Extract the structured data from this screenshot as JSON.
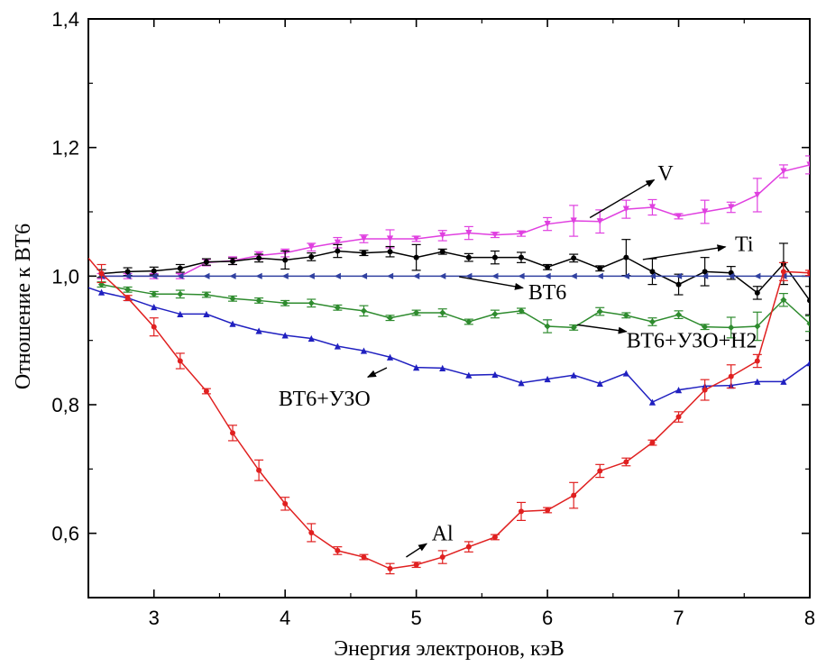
{
  "chart_data": {
    "type": "line",
    "xlabel": "Энергия электронов, кэВ",
    "ylabel": "Отношение к ВТ6",
    "xlim": [
      2.5,
      8
    ],
    "ylim": [
      0.5,
      1.4
    ],
    "x_ticks": [
      3,
      4,
      5,
      6,
      7,
      8
    ],
    "x_tick_labels": [
      "3",
      "4",
      "5",
      "6",
      "7",
      "8"
    ],
    "y_ticks": [
      0.6,
      0.8,
      1.0,
      1.2,
      1.4
    ],
    "y_tick_labels": [
      "0,6",
      "0,8",
      "1,0",
      "1,2",
      "1,4"
    ],
    "grid": false,
    "x": [
      2.6,
      2.8,
      3.0,
      3.2,
      3.4,
      3.6,
      3.8,
      4.0,
      4.2,
      4.4,
      4.6,
      4.8,
      5.0,
      5.2,
      5.4,
      5.6,
      5.8,
      6.0,
      6.2,
      6.4,
      6.6,
      6.8,
      7.0,
      7.2,
      7.4,
      7.6,
      7.8,
      8.0
    ],
    "series": [
      {
        "name": "V",
        "color": "#e040e0",
        "marker": "triangle-down",
        "values": [
          1.0,
          1.0,
          1.0,
          1.0,
          1.021,
          1.024,
          1.032,
          1.036,
          1.045,
          1.052,
          1.058,
          1.058,
          1.058,
          1.063,
          1.067,
          1.064,
          1.066,
          1.081,
          1.086,
          1.085,
          1.104,
          1.107,
          1.093,
          1.1,
          1.107,
          1.126,
          1.163,
          1.173
        ],
        "errors": [
          0.004,
          0.004,
          0.004,
          0.004,
          0.005,
          0.006,
          0.006,
          0.006,
          0.006,
          0.008,
          0.006,
          0.014,
          0.004,
          0.008,
          0.01,
          0.004,
          0.004,
          0.01,
          0.024,
          0.018,
          0.014,
          0.012,
          0.004,
          0.018,
          0.008,
          0.026,
          0.01,
          0.014
        ]
      },
      {
        "name": "Ti",
        "color": "#000000",
        "marker": "circle",
        "values": [
          1.004,
          1.007,
          1.008,
          1.012,
          1.022,
          1.023,
          1.028,
          1.025,
          1.03,
          1.039,
          1.036,
          1.038,
          1.029,
          1.038,
          1.029,
          1.029,
          1.029,
          1.014,
          1.028,
          1.012,
          1.029,
          1.007,
          0.987,
          1.007,
          1.005,
          0.974,
          1.019,
          0.962
        ],
        "errors": [
          0.006,
          0.006,
          0.006,
          0.006,
          0.005,
          0.005,
          0.006,
          0.014,
          0.006,
          0.01,
          0.004,
          0.008,
          0.02,
          0.004,
          0.006,
          0.01,
          0.008,
          0.004,
          0.006,
          0.004,
          0.028,
          0.02,
          0.016,
          0.022,
          0.01,
          0.01,
          0.032,
          0.022
        ]
      },
      {
        "name": "ВТ6",
        "color": "#3040a0",
        "marker": "triangle-left",
        "values": [
          1.0,
          1.0,
          1.0,
          1.0,
          1.0,
          1.0,
          1.0,
          1.0,
          1.0,
          1.0,
          1.0,
          1.0,
          1.0,
          1.0,
          1.0,
          1.0,
          1.0,
          1.0,
          1.0,
          1.0,
          1.0,
          1.0,
          1.0,
          1.0,
          1.0,
          1.0,
          1.0,
          1.0
        ],
        "errors": [
          0,
          0,
          0,
          0,
          0,
          0,
          0,
          0,
          0,
          0,
          0,
          0,
          0,
          0,
          0,
          0,
          0,
          0,
          0,
          0,
          0,
          0,
          0,
          0,
          0,
          0,
          0,
          0
        ]
      },
      {
        "name": "ВТ6+УЗО+Н2",
        "color": "#2e8b2e",
        "marker": "diamond",
        "values": [
          0.987,
          0.979,
          0.972,
          0.972,
          0.971,
          0.965,
          0.962,
          0.958,
          0.958,
          0.951,
          0.946,
          0.935,
          0.943,
          0.943,
          0.929,
          0.941,
          0.946,
          0.922,
          0.92,
          0.945,
          0.939,
          0.929,
          0.94,
          0.921,
          0.92,
          0.922,
          0.963,
          0.926
        ],
        "errors": [
          0.004,
          0.004,
          0.004,
          0.006,
          0.004,
          0.004,
          0.004,
          0.004,
          0.006,
          0.004,
          0.008,
          0.004,
          0.004,
          0.006,
          0.004,
          0.006,
          0.004,
          0.01,
          0.004,
          0.006,
          0.004,
          0.006,
          0.006,
          0.004,
          0.016,
          0.022,
          0.01,
          0.012
        ]
      },
      {
        "name": "ВТ6+УЗО",
        "color": "#2020c0",
        "marker": "triangle-up",
        "values": [
          0.975,
          0.966,
          0.952,
          0.941,
          0.941,
          0.926,
          0.915,
          0.908,
          0.903,
          0.891,
          0.884,
          0.874,
          0.858,
          0.857,
          0.846,
          0.847,
          0.834,
          0.84,
          0.846,
          0.833,
          0.849,
          0.804,
          0.823,
          0.829,
          0.83,
          0.836,
          0.836,
          0.865
        ]
      },
      {
        "name": "Al",
        "color": "#e02020",
        "marker": "circle",
        "values": [
          1.004,
          0.966,
          0.921,
          0.868,
          0.821,
          0.756,
          0.698,
          0.646,
          0.601,
          0.573,
          0.563,
          0.545,
          0.551,
          0.563,
          0.579,
          0.594,
          0.634,
          0.636,
          0.659,
          0.697,
          0.711,
          0.741,
          0.781,
          0.823,
          0.844,
          0.868,
          1.007,
          1.005
        ],
        "errors": [
          0.014,
          0.004,
          0.014,
          0.012,
          0.004,
          0.012,
          0.016,
          0.01,
          0.014,
          0.006,
          0.004,
          0.008,
          0.004,
          0.01,
          0.008,
          0.004,
          0.014,
          0.004,
          0.02,
          0.01,
          0.006,
          0.004,
          0.008,
          0.016,
          0.018,
          0.01,
          0.014,
          0.004
        ]
      }
    ],
    "series_extra_points": {
      "ВТ6+УЗО": {
        "x_start": 2.5,
        "y_start": 0.982
      },
      "Al": {
        "x_start": 2.5,
        "y_start": 1.028
      }
    },
    "annotations": [
      {
        "text": "V",
        "target": [
          6.3,
          1.088
        ],
        "label_at": [
          6.9,
          1.16
        ]
      },
      {
        "text": "Ti",
        "target": [
          6.7,
          1.025
        ],
        "label_at": [
          7.5,
          1.05
        ]
      },
      {
        "text": "ВТ6",
        "target": [
          5.3,
          1.0
        ],
        "label_at": [
          6.0,
          0.975
        ]
      },
      {
        "text": "ВТ6+УЗО+Н2",
        "target": [
          6.2,
          0.925
        ],
        "label_at": [
          7.1,
          0.9
        ]
      },
      {
        "text": "ВТ6+УЗО",
        "target": [
          4.8,
          0.86
        ],
        "label_at": [
          4.3,
          0.81
        ]
      },
      {
        "text": "Al",
        "target": [
          4.9,
          0.56
        ],
        "label_at": [
          5.2,
          0.6
        ]
      }
    ]
  }
}
